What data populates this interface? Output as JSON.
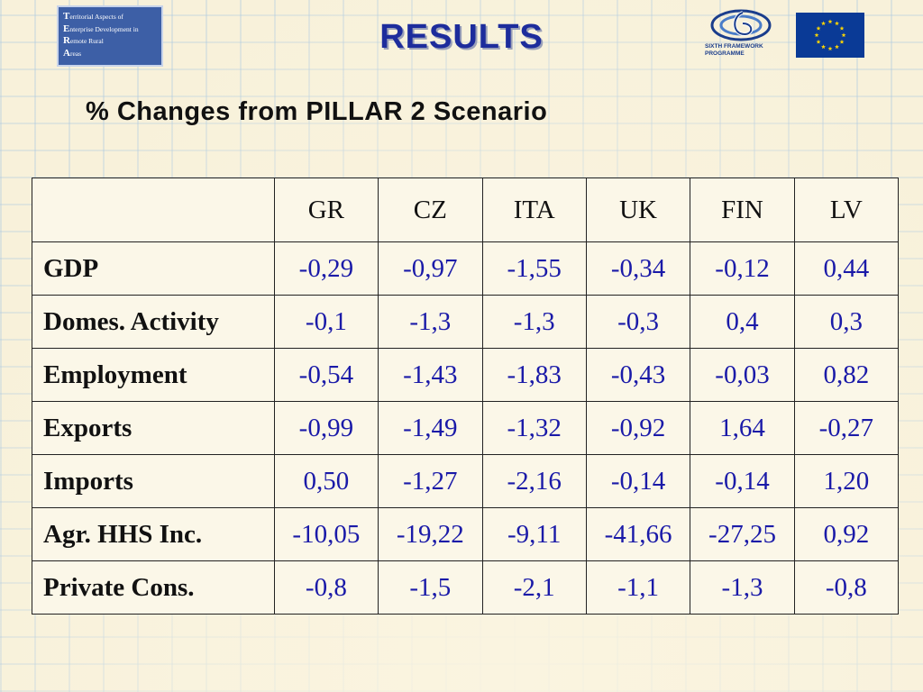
{
  "logo": {
    "lines": [
      {
        "cap": "T",
        "rest": "erritorial Aspects of"
      },
      {
        "cap": "E",
        "rest": "nterprise Development in"
      },
      {
        "cap": "R",
        "rest": "emote Rural"
      },
      {
        "cap": "A",
        "rest": "reas"
      }
    ]
  },
  "header": {
    "title": "RESULTS",
    "subtitle": "% Changes from PILLAR 2 Scenario"
  },
  "fp6_logo": {
    "line1": "SIXTH FRAMEWORK",
    "line2": "PROGRAMME"
  },
  "colors": {
    "title": "#1d2c9c",
    "value_text": "#1a1aa8",
    "eu_blue": "#0a3a96",
    "eu_star": "#ffd600"
  },
  "table": {
    "columns": [
      "",
      "GR",
      "CZ",
      "ITA",
      "UK",
      "FIN",
      "LV"
    ],
    "rows": [
      {
        "label": "GDP",
        "values": [
          "-0,29",
          "-0,97",
          "-1,55",
          "-0,34",
          "-0,12",
          "0,44"
        ]
      },
      {
        "label": "Domes. Activity",
        "values": [
          "-0,1",
          "-1,3",
          "-1,3",
          "-0,3",
          "0,4",
          "0,3"
        ]
      },
      {
        "label": "Employment",
        "values": [
          "-0,54",
          "-1,43",
          "-1,83",
          "-0,43",
          "-0,03",
          "0,82"
        ]
      },
      {
        "label": "Exports",
        "values": [
          "-0,99",
          "-1,49",
          "-1,32",
          "-0,92",
          "1,64",
          "-0,27"
        ]
      },
      {
        "label": "Imports",
        "values": [
          "0,50",
          "-1,27",
          "-2,16",
          "-0,14",
          "-0,14",
          "1,20"
        ]
      },
      {
        "label": "Agr. HHS Inc.",
        "values": [
          "-10,05",
          "-19,22",
          "-9,11",
          "-41,66",
          "-27,25",
          "0,92"
        ]
      },
      {
        "label": "Private Cons.",
        "values": [
          "-0,8",
          "-1,5",
          "-2,1",
          "-1,1",
          "-1,3",
          "-0,8"
        ]
      }
    ]
  }
}
